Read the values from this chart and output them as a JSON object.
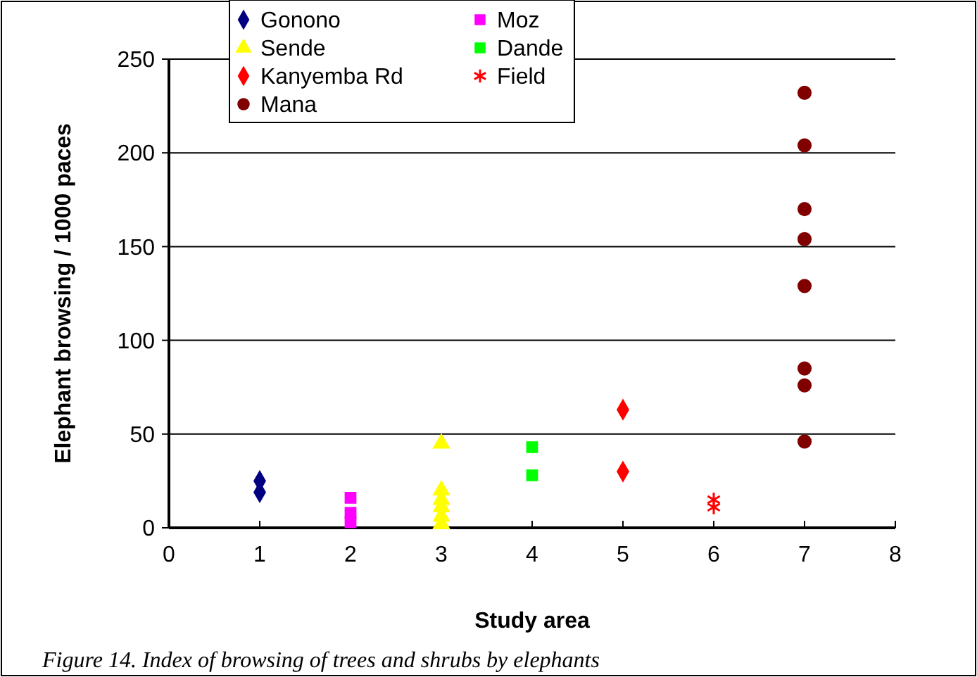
{
  "chart_data": {
    "type": "scatter",
    "xlabel": "Study area",
    "ylabel": "Elephant browsing / 1000 paces",
    "xlim": [
      0,
      8
    ],
    "xticks": [
      0,
      1,
      2,
      3,
      4,
      5,
      6,
      7,
      8
    ],
    "ylim": [
      0,
      250
    ],
    "yticks": [
      0,
      50,
      100,
      150,
      200,
      250
    ],
    "grid": "y",
    "legend": "top",
    "annotations": [
      "Figure 14. Index of browsing of trees and shrubs by elephants"
    ],
    "series": [
      {
        "name": "Gonono",
        "color": "#000080",
        "marker": "diamond",
        "x": [
          1,
          1
        ],
        "values": [
          25,
          19
        ]
      },
      {
        "name": "Moz",
        "color": "#ff00ff",
        "marker": "square",
        "x": [
          2,
          2,
          2
        ],
        "values": [
          16,
          8,
          3
        ]
      },
      {
        "name": "Sende",
        "color": "#ffff00",
        "marker": "triangle",
        "x": [
          3,
          3,
          3,
          3,
          3,
          3
        ],
        "values": [
          45,
          20,
          15,
          11,
          6,
          2
        ]
      },
      {
        "name": "Dande",
        "color": "#00ff00",
        "marker": "square",
        "x": [
          4,
          4
        ],
        "values": [
          43,
          28
        ]
      },
      {
        "name": "Kanyemba Rd",
        "color": "#ff0000",
        "marker": "diamond",
        "x": [
          5,
          5
        ],
        "values": [
          63,
          30
        ]
      },
      {
        "name": "Field",
        "color": "#ff0000",
        "marker": "cross",
        "x": [
          6,
          6
        ],
        "values": [
          15,
          11
        ]
      },
      {
        "name": "Mana",
        "color": "#800000",
        "marker": "circle",
        "x": [
          7,
          7,
          7,
          7,
          7,
          7,
          7,
          7
        ],
        "values": [
          232,
          204,
          170,
          154,
          129,
          85,
          76,
          46
        ]
      }
    ]
  }
}
